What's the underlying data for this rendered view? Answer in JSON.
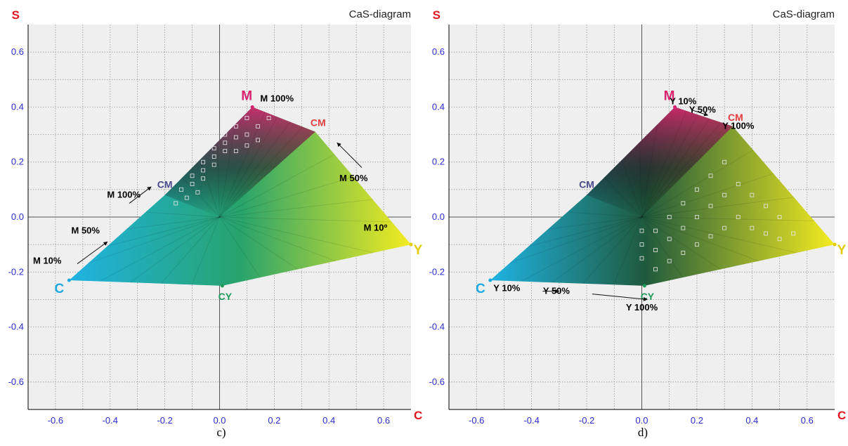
{
  "chart_data": [
    {
      "type": "scatter",
      "panel_label": "c)",
      "title": "CaS-diagram",
      "xlabel": "C",
      "ylabel": "S",
      "xlim": [
        -0.7,
        0.7
      ],
      "ylim": [
        -0.7,
        0.7
      ],
      "xticks": [
        "-0.6",
        "-0.4",
        "-0.2",
        "0.0",
        "0.2",
        "0.4",
        "0.6"
      ],
      "yticks": [
        "0.6",
        "0.4",
        "0.2",
        "0.0",
        "-0.2",
        "-0.4",
        "-0.6"
      ],
      "grid": true,
      "vertices": [
        {
          "label": "C",
          "x": -0.55,
          "y": -0.23,
          "color": "#1fa9e0"
        },
        {
          "label": "M",
          "x": 0.12,
          "y": 0.4,
          "color": "#d6226f"
        },
        {
          "label": "Y",
          "x": 0.7,
          "y": -0.1,
          "color": "#e3cc00"
        },
        {
          "label": "CM",
          "x": -0.2,
          "y": 0.08,
          "color": "#4a4a8c"
        },
        {
          "label": "CM",
          "x": 0.35,
          "y": 0.31,
          "color": "#e04040"
        },
        {
          "label": "CY",
          "x": 0.01,
          "y": -0.25,
          "color": "#1f9a5a"
        }
      ],
      "annotations": [
        {
          "text": "M 100%",
          "x": 0.21,
          "y": 0.42
        },
        {
          "text": "M 50%",
          "x": 0.49,
          "y": 0.13
        },
        {
          "text": "M 10º",
          "x": 0.57,
          "y": -0.05
        },
        {
          "text": "M 100%",
          "x": -0.35,
          "y": 0.07
        },
        {
          "text": "M 50%",
          "x": -0.49,
          "y": -0.06
        },
        {
          "text": "M 10%",
          "x": -0.63,
          "y": -0.17
        }
      ],
      "arrows": [
        {
          "from": [
            0.52,
            0.18
          ],
          "to": [
            0.43,
            0.27
          ]
        },
        {
          "from": [
            -0.52,
            -0.17
          ],
          "to": [
            -0.41,
            -0.09
          ]
        },
        {
          "from": [
            -0.33,
            0.05
          ],
          "to": [
            -0.25,
            0.11
          ]
        }
      ]
    },
    {
      "type": "scatter",
      "panel_label": "d)",
      "title": "CaS-diagram",
      "xlabel": "C",
      "ylabel": "S",
      "xlim": [
        -0.7,
        0.7
      ],
      "ylim": [
        -0.7,
        0.7
      ],
      "xticks": [
        "-0.6",
        "-0.4",
        "-0.2",
        "0.0",
        "0.2",
        "0.4",
        "0.6"
      ],
      "yticks": [
        "0.6",
        "0.4",
        "0.2",
        "0.0",
        "-0.2",
        "-0.4",
        "-0.6"
      ],
      "grid": true,
      "vertices": [
        {
          "label": "C",
          "x": -0.55,
          "y": -0.23,
          "color": "#1fa9e0"
        },
        {
          "label": "M",
          "x": 0.12,
          "y": 0.4,
          "color": "#d6226f"
        },
        {
          "label": "Y",
          "x": 0.7,
          "y": -0.1,
          "color": "#e3cc00"
        },
        {
          "label": "CM",
          "x": -0.2,
          "y": 0.08,
          "color": "#4a4a8c"
        },
        {
          "label": "CM",
          "x": 0.33,
          "y": 0.33,
          "color": "#e04040"
        },
        {
          "label": "CY",
          "x": 0.01,
          "y": -0.25,
          "color": "#1f9a5a"
        }
      ],
      "annotations": [
        {
          "text": "Y 10%",
          "x": 0.15,
          "y": 0.41
        },
        {
          "text": "Y 50%",
          "x": 0.22,
          "y": 0.38
        },
        {
          "text": "Y 100%",
          "x": 0.35,
          "y": 0.32
        },
        {
          "text": "Y 10%",
          "x": -0.49,
          "y": -0.27
        },
        {
          "text": "Y 50%",
          "x": -0.31,
          "y": -0.28
        },
        {
          "text": "Y 100%",
          "x": 0.0,
          "y": -0.34
        }
      ],
      "arrows": [
        {
          "from": [
            0.18,
            0.39
          ],
          "to": [
            0.24,
            0.37
          ]
        },
        {
          "from": [
            -0.36,
            -0.27
          ],
          "to": [
            -0.3,
            -0.27
          ]
        },
        {
          "from": [
            -0.18,
            -0.28
          ],
          "to": [
            0.02,
            -0.3
          ]
        }
      ]
    }
  ]
}
